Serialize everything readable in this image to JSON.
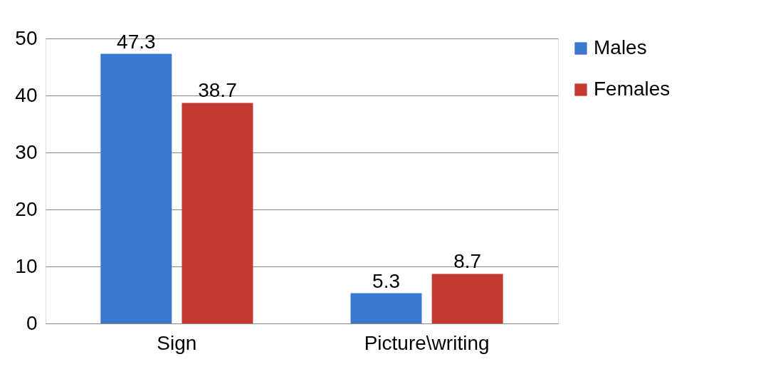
{
  "chart_data": {
    "type": "bar",
    "categories": [
      "Sign",
      "Picture\\writing"
    ],
    "series": [
      {
        "name": "Males",
        "color": "#3a78d0",
        "values": [
          47.3,
          5.3
        ]
      },
      {
        "name": "Females",
        "color": "#c43a32",
        "values": [
          38.7,
          8.7
        ]
      }
    ],
    "ylim": [
      0,
      50
    ],
    "yticks": [
      0,
      10,
      20,
      30,
      40,
      50
    ],
    "grid": "y",
    "legend": "right",
    "data_labels": true
  }
}
